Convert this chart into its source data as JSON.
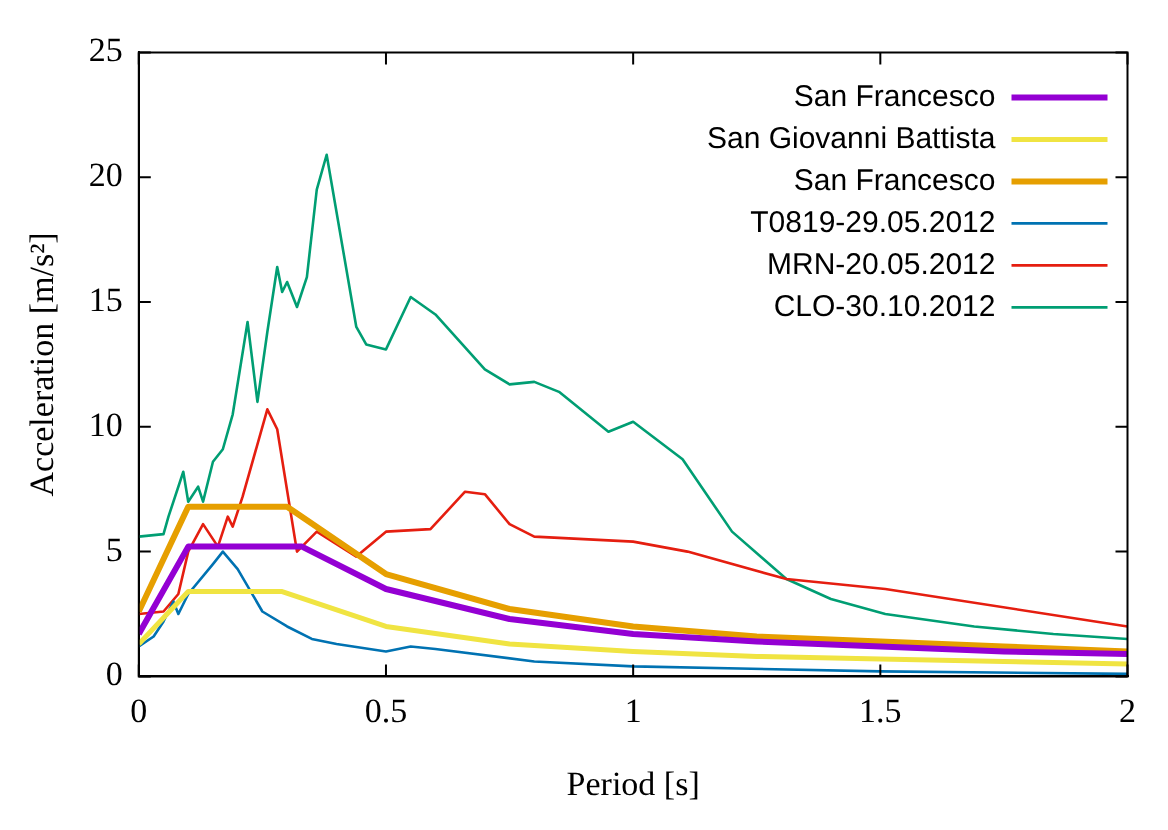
{
  "chart_data": {
    "type": "line",
    "xlabel": "Period [s]",
    "ylabel": "Acceleration [m/s²]",
    "xlim": [
      0,
      2
    ],
    "xticks": [
      0,
      0.5,
      1,
      1.5,
      2
    ],
    "ylim": [
      0,
      25
    ],
    "yticks": [
      0,
      5,
      10,
      15,
      20,
      25
    ],
    "grid": false,
    "legend": "top right",
    "marker": "none",
    "line_style": "solid",
    "series": [
      {
        "name": "San Francesco",
        "color": "#9400d3",
        "x": [
          0,
          0.1,
          0.33,
          0.5,
          0.75,
          1,
          1.25,
          1.5,
          1.75,
          2
        ],
        "values": [
          1.7,
          5.2,
          5.2,
          3.5,
          2.3,
          1.7,
          1.4,
          1.2,
          1.0,
          0.9
        ]
      },
      {
        "name": "San Giovanni Battista",
        "color": "#f0e442",
        "x": [
          0,
          0.1,
          0.29,
          0.5,
          0.75,
          1,
          1.25,
          1.5,
          1.75,
          2
        ],
        "values": [
          1.3,
          3.4,
          3.4,
          2.0,
          1.3,
          1.0,
          0.8,
          0.7,
          0.6,
          0.5
        ]
      },
      {
        "name": "San Francesco",
        "color": "#e69f00",
        "x": [
          0,
          0.1,
          0.3,
          0.5,
          0.75,
          1,
          1.25,
          1.5,
          1.75,
          2
        ],
        "values": [
          2.6,
          6.8,
          6.8,
          4.1,
          2.7,
          2.0,
          1.6,
          1.4,
          1.2,
          1.0
        ]
      },
      {
        "name": "T0819-29.05.2012",
        "color": "#0072b2",
        "x": [
          0,
          0.03,
          0.05,
          0.07,
          0.08,
          0.1,
          0.15,
          0.17,
          0.2,
          0.25,
          0.3,
          0.35,
          0.4,
          0.5,
          0.55,
          0.6,
          0.8,
          1,
          1.5,
          2
        ],
        "values": [
          1.2,
          1.6,
          2.2,
          3.0,
          2.5,
          3.3,
          4.5,
          5.0,
          4.3,
          2.6,
          2.0,
          1.5,
          1.3,
          1.0,
          1.2,
          1.1,
          0.6,
          0.4,
          0.2,
          0.1
        ]
      },
      {
        "name": "MRN-20.05.2012",
        "color": "#e51e10",
        "x": [
          0,
          0.05,
          0.08,
          0.1,
          0.13,
          0.16,
          0.18,
          0.19,
          0.21,
          0.26,
          0.28,
          0.32,
          0.36,
          0.4,
          0.44,
          0.5,
          0.59,
          0.66,
          0.7,
          0.75,
          0.8,
          1,
          1.11,
          1.31,
          1.51,
          2
        ],
        "values": [
          2.5,
          2.6,
          3.3,
          5.0,
          6.1,
          5.2,
          6.4,
          6.0,
          7.2,
          10.7,
          9.9,
          5.0,
          5.8,
          5.3,
          4.8,
          5.8,
          5.9,
          7.4,
          7.3,
          6.1,
          5.6,
          5.4,
          5.0,
          3.9,
          3.5,
          2.0
        ]
      },
      {
        "name": "CLO-30.10.2012",
        "color": "#009e73",
        "x": [
          0,
          0.05,
          0.06,
          0.09,
          0.1,
          0.12,
          0.13,
          0.15,
          0.17,
          0.19,
          0.22,
          0.24,
          0.26,
          0.28,
          0.29,
          0.3,
          0.32,
          0.34,
          0.36,
          0.38,
          0.44,
          0.46,
          0.5,
          0.55,
          0.6,
          0.7,
          0.75,
          0.8,
          0.85,
          0.95,
          1,
          1.1,
          1.2,
          1.31,
          1.4,
          1.51,
          1.69,
          1.85,
          2
        ],
        "values": [
          5.6,
          5.7,
          6.4,
          8.2,
          7.0,
          7.6,
          7.0,
          8.6,
          9.1,
          10.5,
          14.2,
          11.0,
          13.8,
          16.4,
          15.4,
          15.8,
          14.8,
          16.0,
          19.5,
          20.9,
          14.0,
          13.3,
          13.1,
          15.2,
          14.5,
          12.3,
          11.7,
          11.8,
          11.4,
          9.8,
          10.2,
          8.7,
          5.8,
          3.9,
          3.1,
          2.5,
          2.0,
          1.7,
          1.5
        ]
      }
    ]
  }
}
